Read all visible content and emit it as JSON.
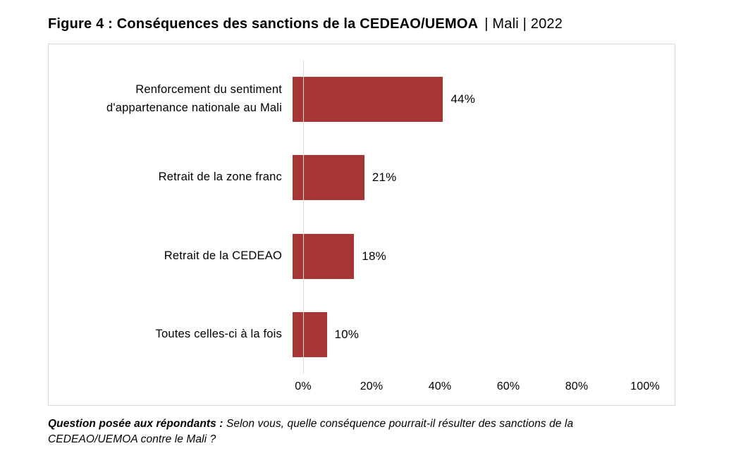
{
  "title": {
    "bold": "Figure 4 : Conséquences des sanctions de la CEDEAO/UEMOA",
    "context": "| Mali | 2022"
  },
  "chart_data": {
    "type": "bar",
    "orientation": "horizontal",
    "title": "Figure 4 : Conséquences des sanctions de la CEDEAO/UEMOA | Mali | 2022",
    "categories": [
      "Renforcement du sentiment\nd'appartenance nationale au Mali",
      "Retrait de la zone franc",
      "Retrait de la CEDEAO",
      "Toutes celles-ci à la fois"
    ],
    "values": [
      44,
      21,
      18,
      10
    ],
    "value_labels": [
      "44%",
      "21%",
      "18%",
      "10%"
    ],
    "xlim": [
      0,
      100
    ],
    "x_ticks": [
      "0%",
      "20%",
      "40%",
      "60%",
      "80%",
      "100%"
    ],
    "grid": false,
    "legend": "none",
    "bar_color": "#a53634"
  },
  "footnote": {
    "label": "Question posée aux répondants :",
    "text": "Selon vous, quelle conséquence pourrait-il résulter des sanctions de la\nCEDEAO/UEMOA contre le Mali ?"
  },
  "colors": {
    "bar": "#a53634",
    "chart_border": "#d9d9d9",
    "axis_line": "#d9d9d9",
    "text": "#000000",
    "background": "#ffffff"
  }
}
